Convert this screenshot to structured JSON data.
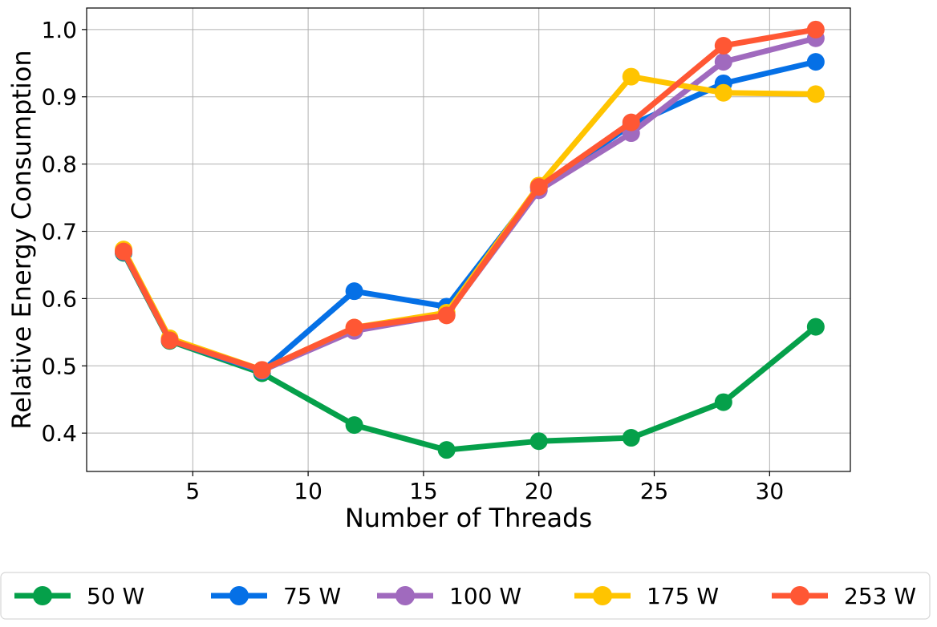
{
  "chart_data": {
    "type": "line",
    "title": "",
    "xlabel": "Number of Threads",
    "ylabel": "Relative Energy Consumption",
    "x": [
      2,
      4,
      8,
      12,
      16,
      20,
      24,
      28,
      32
    ],
    "xlim": [
      0.4,
      33.5
    ],
    "ylim": [
      0.343,
      1.032
    ],
    "xticks": [
      5,
      10,
      15,
      20,
      25,
      30
    ],
    "yticks": [
      0.4,
      0.5,
      0.6,
      0.7,
      0.8,
      0.9,
      1.0
    ],
    "xtick_labels": [
      "5",
      "10",
      "15",
      "20",
      "25",
      "30"
    ],
    "ytick_labels": [
      "0.4",
      "0.5",
      "0.6",
      "0.7",
      "0.8",
      "0.9",
      "1.0"
    ],
    "grid": true,
    "legend_position": "bottom-center, below plot",
    "series": [
      {
        "name": "50 W",
        "color": "#05a04a",
        "values": [
          0.668,
          0.537,
          0.489,
          0.412,
          0.375,
          0.388,
          0.393,
          0.446,
          0.558
        ]
      },
      {
        "name": "75 W",
        "color": "#0570e6",
        "values": [
          0.669,
          0.538,
          0.492,
          0.611,
          0.588,
          0.765,
          0.858,
          0.92,
          0.952
        ]
      },
      {
        "name": "100 W",
        "color": "#a06abe",
        "values": [
          0.67,
          0.539,
          0.493,
          0.552,
          0.576,
          0.761,
          0.846,
          0.952,
          0.987
        ]
      },
      {
        "name": "175 W",
        "color": "#ffc400",
        "values": [
          0.673,
          0.541,
          0.494,
          0.557,
          0.579,
          0.768,
          0.93,
          0.906,
          0.904
        ]
      },
      {
        "name": "253 W",
        "color": "#ff5734",
        "values": [
          0.67,
          0.538,
          0.494,
          0.557,
          0.575,
          0.766,
          0.862,
          0.976,
          1.0
        ]
      }
    ]
  }
}
